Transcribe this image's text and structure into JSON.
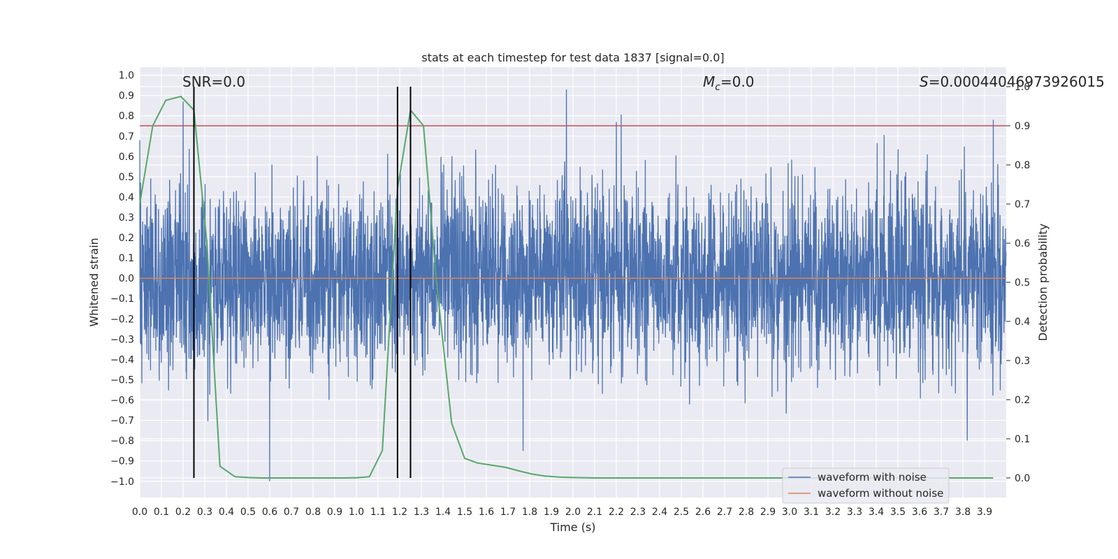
{
  "chart_data": {
    "type": "line",
    "title": "stats at each timestep for test data 1837 [signal=0.0]",
    "xlabel": "Time (s)",
    "ylabel_left": "Whitened strain",
    "ylabel_right": "Detection probability",
    "xlim": [
      0.0,
      4.0
    ],
    "ylim_left": [
      -1.08,
      1.04
    ],
    "ylim_right": [
      -0.05,
      1.05
    ],
    "x_ticks": [
      "0.0",
      "0.1",
      "0.2",
      "0.3",
      "0.4",
      "0.5",
      "0.6",
      "0.7",
      "0.8",
      "0.9",
      "1.0",
      "1.1",
      "1.2",
      "1.3",
      "1.4",
      "1.5",
      "1.6",
      "1.7",
      "1.8",
      "1.9",
      "2.0",
      "2.1",
      "2.2",
      "2.3",
      "2.4",
      "2.5",
      "2.6",
      "2.7",
      "2.8",
      "2.9",
      "3.0",
      "3.1",
      "3.2",
      "3.3",
      "3.4",
      "3.5",
      "3.6",
      "3.7",
      "3.8",
      "3.9"
    ],
    "y_ticks_left": [
      "1.0",
      "0.9",
      "0.8",
      "0.7",
      "0.6",
      "0.5",
      "0.4",
      "0.3",
      "0.2",
      "0.1",
      "0.0",
      "−0.1",
      "−0.2",
      "−0.3",
      "−0.4",
      "−0.5",
      "−0.6",
      "−0.7",
      "−0.8",
      "−0.9",
      "−1.0"
    ],
    "y_ticks_right": [
      "1.0",
      "0.9",
      "0.8",
      "0.7",
      "0.6",
      "0.5",
      "0.4",
      "0.3",
      "0.2",
      "0.1",
      "0.0"
    ],
    "annotations": {
      "snr": "SNR=0.0",
      "mc_symbol": "M",
      "mc_sub": "c",
      "mc_value": "=0.0",
      "s_symbol": "S",
      "s_value": "=0.00044046973926015"
    },
    "threshold_right": 0.9,
    "vertical_markers_x": [
      0.25,
      1.19,
      1.25
    ],
    "legend": {
      "location": "lower-right",
      "entries": [
        "waveform with noise",
        "waveform without noise"
      ]
    },
    "grid": true,
    "series": [
      {
        "name": "waveform with noise",
        "axis": "left",
        "style": "noise",
        "x_range": [
          0.0,
          3.999
        ],
        "sample_count": 4096,
        "typical_amplitude": 0.4,
        "visible_peaks": [
          {
            "x": 0.0,
            "y": 0.68
          },
          {
            "x": 0.2,
            "y": 0.87
          },
          {
            "x": 0.6,
            "y": -1.0
          },
          {
            "x": 1.97,
            "y": 0.93
          },
          {
            "x": 2.2,
            "y": 0.77
          },
          {
            "x": 1.77,
            "y": -0.85
          },
          {
            "x": 3.82,
            "y": -0.8
          },
          {
            "x": 3.94,
            "y": 0.78
          }
        ]
      },
      {
        "name": "waveform without noise",
        "axis": "left",
        "x": [
          0.0,
          4.0
        ],
        "y": [
          0.0,
          0.0
        ]
      },
      {
        "name": "detection probability",
        "axis": "right",
        "x": [
          0.0,
          0.06,
          0.12,
          0.19,
          0.25,
          0.31,
          0.37,
          0.44,
          0.5,
          0.56,
          0.62,
          0.69,
          0.75,
          0.81,
          0.87,
          0.94,
          1.0,
          1.06,
          1.12,
          1.19,
          1.25,
          1.31,
          1.37,
          1.44,
          1.5,
          1.56,
          1.62,
          1.69,
          1.75,
          1.81,
          1.87,
          1.94,
          2.0,
          2.1,
          2.5,
          3.0,
          3.5,
          3.94
        ],
        "y": [
          0.7,
          0.9,
          0.965,
          0.975,
          0.94,
          0.6,
          0.03,
          0.003,
          0.001,
          0.0,
          0.0,
          0.0,
          0.0,
          0.0,
          0.0,
          0.0,
          0.0005,
          0.003,
          0.07,
          0.74,
          0.94,
          0.9,
          0.5,
          0.14,
          0.05,
          0.038,
          0.033,
          0.027,
          0.018,
          0.01,
          0.005,
          0.002,
          0.001,
          0.0,
          0.0,
          0.0,
          0.0,
          0.0
        ]
      }
    ],
    "colors": {
      "noise": "#4c72b0",
      "clean": "#dd8452",
      "probability": "#55a868",
      "threshold": "#c44e52",
      "markers": "#000000",
      "plot_bg": "#eaeaf2",
      "grid": "#ffffff"
    }
  }
}
